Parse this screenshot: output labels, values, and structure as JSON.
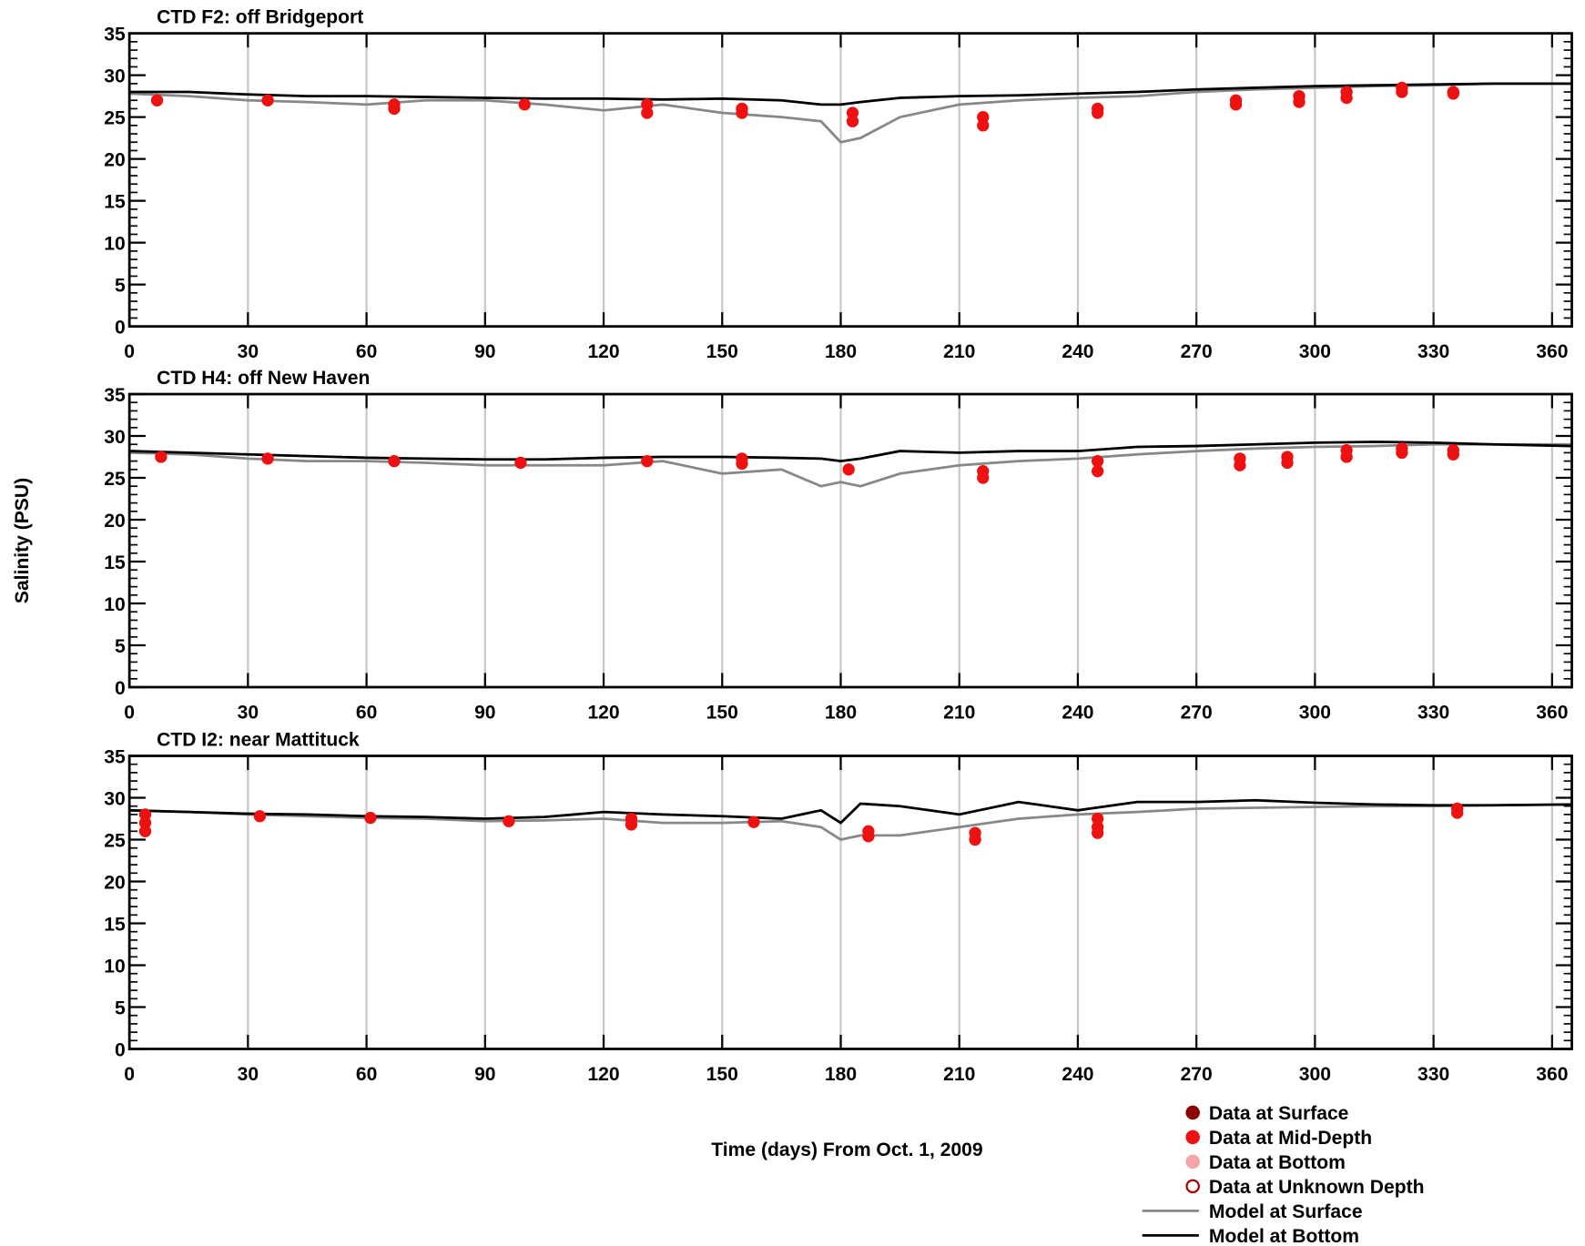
{
  "chart_data": [
    {
      "type": "line",
      "title": "CTD F2: off Bridgeport",
      "xlim": [
        0,
        365
      ],
      "ylim": [
        0,
        35
      ],
      "xticks": [
        0,
        30,
        60,
        90,
        120,
        150,
        180,
        210,
        240,
        270,
        300,
        330,
        360
      ],
      "yticks": [
        0,
        5,
        10,
        15,
        20,
        25,
        30,
        35
      ],
      "grid": "x",
      "series": [
        {
          "name": "Model at Surface",
          "color": "#888888",
          "x": [
            0,
            15,
            30,
            45,
            60,
            75,
            90,
            105,
            120,
            135,
            150,
            165,
            175,
            180,
            185,
            195,
            210,
            225,
            240,
            255,
            270,
            285,
            300,
            315,
            330,
            345,
            365
          ],
          "values": [
            27.8,
            27.5,
            27,
            26.8,
            26.5,
            27,
            27,
            26.5,
            25.8,
            26.5,
            25.5,
            25,
            24.5,
            22,
            22.5,
            25,
            26.5,
            27,
            27.3,
            27.5,
            28,
            28.3,
            28.5,
            28.7,
            28.8,
            29,
            29
          ]
        },
        {
          "name": "Model at Bottom",
          "color": "#000000",
          "x": [
            0,
            15,
            30,
            45,
            60,
            75,
            90,
            105,
            120,
            135,
            150,
            165,
            175,
            180,
            185,
            195,
            210,
            225,
            240,
            255,
            270,
            285,
            300,
            315,
            330,
            345,
            365
          ],
          "values": [
            28,
            28,
            27.7,
            27.5,
            27.5,
            27.4,
            27.3,
            27.2,
            27.2,
            27.1,
            27.2,
            27,
            26.5,
            26.5,
            26.8,
            27.3,
            27.5,
            27.6,
            27.8,
            28,
            28.3,
            28.5,
            28.7,
            28.8,
            28.9,
            29,
            29
          ]
        },
        {
          "name": "Data at Mid-Depth",
          "color": "#ee1111",
          "x": [
            7,
            35,
            67,
            67,
            100,
            131,
            131,
            155,
            155,
            183,
            183,
            216,
            216,
            245,
            245,
            280,
            280,
            296,
            296,
            308,
            308,
            322,
            322,
            335,
            335
          ],
          "values": [
            27,
            27,
            26.5,
            26,
            26.5,
            26.5,
            25.5,
            26,
            25.5,
            25.5,
            24.5,
            25,
            24,
            26,
            25.5,
            27,
            26.5,
            27.5,
            26.8,
            28,
            27.3,
            28.5,
            28,
            28,
            27.8
          ]
        }
      ]
    },
    {
      "type": "line",
      "title": "CTD H4: off New Haven",
      "xlim": [
        0,
        365
      ],
      "ylim": [
        0,
        35
      ],
      "xticks": [
        0,
        30,
        60,
        90,
        120,
        150,
        180,
        210,
        240,
        270,
        300,
        330,
        360
      ],
      "yticks": [
        0,
        5,
        10,
        15,
        20,
        25,
        30,
        35
      ],
      "grid": "x",
      "series": [
        {
          "name": "Model at Surface",
          "color": "#888888",
          "x": [
            0,
            15,
            30,
            45,
            60,
            75,
            90,
            105,
            120,
            135,
            150,
            165,
            175,
            180,
            185,
            195,
            210,
            225,
            240,
            255,
            270,
            285,
            300,
            315,
            330,
            345,
            365
          ],
          "values": [
            28,
            27.8,
            27.3,
            27,
            27,
            26.8,
            26.5,
            26.5,
            26.5,
            27,
            25.5,
            26,
            24,
            24.5,
            24,
            25.5,
            26.5,
            27,
            27.3,
            27.8,
            28.2,
            28.5,
            28.7,
            28.8,
            29,
            29,
            29
          ]
        },
        {
          "name": "Model at Bottom",
          "color": "#000000",
          "x": [
            0,
            15,
            30,
            45,
            60,
            75,
            90,
            105,
            120,
            135,
            150,
            165,
            175,
            180,
            185,
            195,
            210,
            225,
            240,
            255,
            270,
            285,
            300,
            315,
            330,
            345,
            365
          ],
          "values": [
            28.2,
            28,
            27.8,
            27.6,
            27.4,
            27.3,
            27.2,
            27.2,
            27.4,
            27.5,
            27.5,
            27.4,
            27.3,
            27,
            27.3,
            28.2,
            28,
            28.2,
            28.2,
            28.7,
            28.8,
            29,
            29.2,
            29.3,
            29.2,
            29,
            28.8
          ]
        },
        {
          "name": "Data at Mid-Depth",
          "color": "#ee1111",
          "x": [
            8,
            35,
            67,
            99,
            131,
            155,
            155,
            182,
            216,
            216,
            245,
            245,
            281,
            281,
            293,
            293,
            308,
            308,
            322,
            322,
            335,
            335
          ],
          "values": [
            27.5,
            27.3,
            27,
            26.8,
            27,
            27.3,
            26.7,
            26,
            25.8,
            25,
            27,
            25.8,
            27.3,
            26.5,
            27.5,
            26.8,
            28.3,
            27.5,
            28.5,
            28,
            28.3,
            27.8
          ]
        }
      ]
    },
    {
      "type": "line",
      "title": "CTD I2: near Mattituck",
      "xlim": [
        0,
        365
      ],
      "ylim": [
        0,
        35
      ],
      "xticks": [
        0,
        30,
        60,
        90,
        120,
        150,
        180,
        210,
        240,
        270,
        300,
        330,
        360
      ],
      "yticks": [
        0,
        5,
        10,
        15,
        20,
        25,
        30,
        35
      ],
      "grid": "x",
      "series": [
        {
          "name": "Model at Surface",
          "color": "#888888",
          "x": [
            0,
            15,
            30,
            45,
            60,
            75,
            90,
            105,
            120,
            135,
            150,
            165,
            175,
            180,
            185,
            195,
            210,
            225,
            240,
            255,
            270,
            285,
            300,
            315,
            330,
            345,
            365
          ],
          "values": [
            28.5,
            28.3,
            28,
            27.8,
            27.6,
            27.5,
            27.2,
            27.3,
            27.5,
            27,
            27,
            27.2,
            26.5,
            25,
            25.5,
            25.5,
            26.5,
            27.5,
            28,
            28.3,
            28.7,
            28.8,
            28.9,
            29,
            29,
            29.1,
            29.2
          ]
        },
        {
          "name": "Model at Bottom",
          "color": "#000000",
          "x": [
            0,
            15,
            30,
            45,
            60,
            75,
            90,
            105,
            120,
            135,
            150,
            165,
            175,
            180,
            185,
            195,
            210,
            225,
            240,
            255,
            270,
            285,
            300,
            315,
            330,
            345,
            365
          ],
          "values": [
            28.5,
            28.3,
            28.1,
            28,
            27.8,
            27.7,
            27.5,
            27.7,
            28.3,
            28,
            27.8,
            27.5,
            28.5,
            27,
            29.3,
            29,
            28,
            29.5,
            28.5,
            29.5,
            29.5,
            29.7,
            29.4,
            29.2,
            29.1,
            29.1,
            29.2
          ]
        },
        {
          "name": "Data at Mid-Depth",
          "color": "#ee1111",
          "x": [
            4,
            4,
            4,
            33,
            61,
            96,
            127,
            127,
            158,
            187,
            187,
            214,
            214,
            245,
            245,
            245,
            336,
            336
          ],
          "values": [
            28,
            27,
            26,
            27.8,
            27.6,
            27.2,
            27.5,
            26.8,
            27.1,
            26,
            25.4,
            25.8,
            25,
            27.5,
            26.5,
            25.8,
            28.7,
            28.2
          ]
        }
      ]
    }
  ],
  "xlabel": "Time (days) From Oct. 1, 2009",
  "ylabel": "Salinity (PSU)",
  "legend": [
    {
      "name": "Data at Surface",
      "color": "#8b0000",
      "marker": "filled"
    },
    {
      "name": "Data at Mid-Depth",
      "color": "#ee1111",
      "marker": "filled"
    },
    {
      "name": "Data at Bottom",
      "color": "#f4a6a6",
      "marker": "filled"
    },
    {
      "name": "Data at Unknown Depth",
      "color": "#aa0000",
      "marker": "open"
    },
    {
      "name": "Model at Surface",
      "color": "#888888",
      "marker": "line"
    },
    {
      "name": "Model at Bottom",
      "color": "#000000",
      "marker": "line"
    }
  ]
}
